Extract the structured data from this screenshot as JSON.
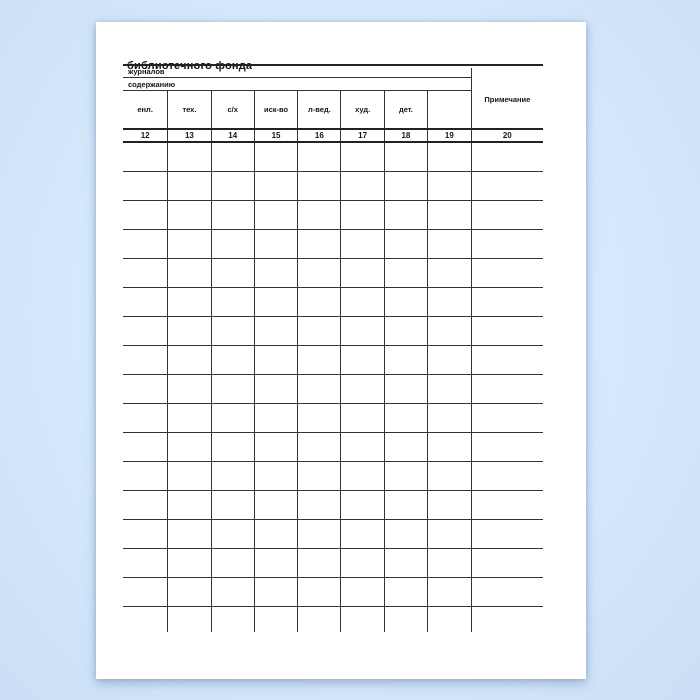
{
  "page": {
    "title": "библиотечного фонда"
  },
  "table": {
    "group_rows": [
      "журналов",
      "содержанию"
    ],
    "note_header": "Примечание",
    "categories": [
      "енл.",
      "тех.",
      "с/х",
      "иск-во",
      "л-вед.",
      "худ.",
      "дет.",
      ""
    ],
    "column_numbers": [
      "12",
      "13",
      "14",
      "15",
      "16",
      "17",
      "18",
      "19",
      "20"
    ],
    "blank_row_count": 16,
    "blank_cell_count": 9
  },
  "colors": {
    "background": "#d5e9fc",
    "paper": "#ffffff",
    "line": "#333333",
    "text": "#161616"
  }
}
